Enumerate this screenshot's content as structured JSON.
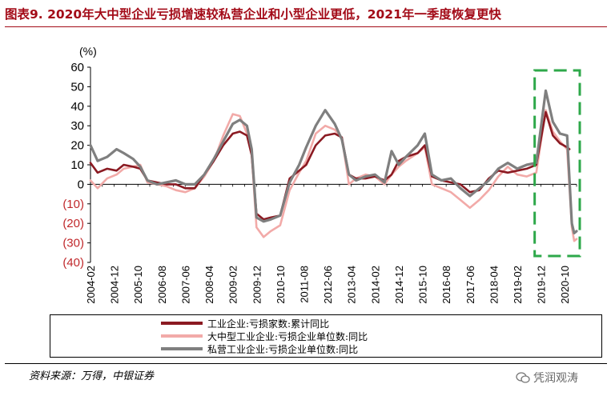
{
  "title": "图表9. 2020年大中型企业亏损增速较私营企业和小型企业更低，2021年一季度恢复更快",
  "unit": "(%)",
  "source": "资料来源：万得，中银证券",
  "watermark": "凭润观涛",
  "colors": {
    "title": "#a30b18",
    "series1": "#8b1a22",
    "series2": "#f2aaa8",
    "series3": "#7f7f7f",
    "highlight": "#2ea84a"
  },
  "chart_data": {
    "type": "line",
    "ylim": [
      -40,
      60
    ],
    "yticks": [
      {
        "v": 60,
        "label": "60"
      },
      {
        "v": 50,
        "label": "50"
      },
      {
        "v": 40,
        "label": "40"
      },
      {
        "v": 30,
        "label": "30"
      },
      {
        "v": 20,
        "label": "20"
      },
      {
        "v": 10,
        "label": "10"
      },
      {
        "v": 0,
        "label": "0"
      },
      {
        "v": -10,
        "label": "(10)"
      },
      {
        "v": -20,
        "label": "(20)"
      },
      {
        "v": -30,
        "label": "(30)"
      },
      {
        "v": -40,
        "label": "(40)"
      }
    ],
    "xlabels": [
      "2004-02",
      "2004-12",
      "2005-10",
      "2006-08",
      "2007-06",
      "2008-04",
      "2009-02",
      "2009-12",
      "2010-10",
      "2011-08",
      "2012-06",
      "2013-04",
      "2014-02",
      "2014-12",
      "2015-10",
      "2016-08",
      "2017-06",
      "2018-04",
      "2019-02",
      "2019-12",
      "2020-10"
    ],
    "x_start": "2004-02",
    "x_end": "2021-03",
    "highlight": {
      "x_from": "2019-10",
      "x_to": "2021-03"
    },
    "series": [
      {
        "name": "工业企业:亏损家数:累计同比",
        "color_key": "series1",
        "width": 2.6,
        "points": [
          [
            "2004-02",
            11
          ],
          [
            "2004-05",
            6
          ],
          [
            "2004-09",
            8
          ],
          [
            "2005-01",
            7
          ],
          [
            "2005-04",
            10
          ],
          [
            "2005-08",
            9
          ],
          [
            "2005-11",
            8
          ],
          [
            "2006-02",
            2
          ],
          [
            "2006-06",
            1
          ],
          [
            "2006-10",
            0
          ],
          [
            "2007-02",
            0
          ],
          [
            "2007-06",
            -2
          ],
          [
            "2007-10",
            -2
          ],
          [
            "2008-02",
            5
          ],
          [
            "2008-06",
            12
          ],
          [
            "2008-10",
            20
          ],
          [
            "2009-02",
            26
          ],
          [
            "2009-05",
            27
          ],
          [
            "2009-08",
            25
          ],
          [
            "2009-10",
            15
          ],
          [
            "2009-12",
            -15
          ],
          [
            "2010-03",
            -18
          ],
          [
            "2010-06",
            -17
          ],
          [
            "2010-10",
            -16
          ],
          [
            "2011-02",
            3
          ],
          [
            "2011-06",
            7
          ],
          [
            "2011-09",
            10
          ],
          [
            "2012-01",
            20
          ],
          [
            "2012-05",
            25
          ],
          [
            "2012-09",
            26
          ],
          [
            "2012-12",
            24
          ],
          [
            "2013-03",
            5
          ],
          [
            "2013-06",
            3
          ],
          [
            "2013-10",
            3
          ],
          [
            "2014-02",
            4
          ],
          [
            "2014-06",
            2
          ],
          [
            "2014-09",
            5
          ],
          [
            "2014-12",
            12
          ],
          [
            "2015-03",
            14
          ],
          [
            "2015-08",
            16
          ],
          [
            "2015-11",
            20
          ],
          [
            "2016-02",
            4
          ],
          [
            "2016-06",
            2
          ],
          [
            "2016-10",
            1
          ],
          [
            "2017-02",
            0
          ],
          [
            "2017-06",
            -4
          ],
          [
            "2017-10",
            -3
          ],
          [
            "2018-02",
            3
          ],
          [
            "2018-06",
            7
          ],
          [
            "2018-10",
            6
          ],
          [
            "2019-02",
            7
          ],
          [
            "2019-06",
            8
          ],
          [
            "2019-10",
            10
          ],
          [
            "2020-02",
            37
          ],
          [
            "2020-05",
            25
          ],
          [
            "2020-08",
            21
          ],
          [
            "2020-11",
            19
          ],
          [
            "2020-12",
            18
          ]
        ]
      },
      {
        "name": "大中型工业企业:亏损企业单位数:同比",
        "color_key": "series2",
        "width": 2.6,
        "points": [
          [
            "2004-02",
            2
          ],
          [
            "2004-05",
            -2
          ],
          [
            "2004-09",
            3
          ],
          [
            "2005-01",
            5
          ],
          [
            "2005-04",
            8
          ],
          [
            "2005-08",
            9
          ],
          [
            "2005-11",
            10
          ],
          [
            "2006-02",
            1
          ],
          [
            "2006-06",
            0
          ],
          [
            "2006-10",
            -1
          ],
          [
            "2007-02",
            -3
          ],
          [
            "2007-06",
            -4
          ],
          [
            "2007-10",
            -2
          ],
          [
            "2008-02",
            4
          ],
          [
            "2008-06",
            12
          ],
          [
            "2008-10",
            25
          ],
          [
            "2009-02",
            36
          ],
          [
            "2009-05",
            35
          ],
          [
            "2009-08",
            26
          ],
          [
            "2009-10",
            15
          ],
          [
            "2009-12",
            -22
          ],
          [
            "2010-03",
            -27
          ],
          [
            "2010-06",
            -24
          ],
          [
            "2010-10",
            -21
          ],
          [
            "2011-02",
            -3
          ],
          [
            "2011-06",
            6
          ],
          [
            "2011-09",
            12
          ],
          [
            "2012-01",
            26
          ],
          [
            "2012-05",
            30
          ],
          [
            "2012-09",
            28
          ],
          [
            "2012-12",
            24
          ],
          [
            "2013-03",
            0
          ],
          [
            "2013-06",
            3
          ],
          [
            "2013-10",
            5
          ],
          [
            "2014-02",
            4
          ],
          [
            "2014-06",
            0
          ],
          [
            "2014-09",
            5
          ],
          [
            "2014-12",
            9
          ],
          [
            "2015-03",
            12
          ],
          [
            "2015-08",
            16
          ],
          [
            "2015-11",
            19
          ],
          [
            "2016-02",
            0
          ],
          [
            "2016-06",
            -2
          ],
          [
            "2016-10",
            -4
          ],
          [
            "2017-02",
            -8
          ],
          [
            "2017-06",
            -12
          ],
          [
            "2017-10",
            -8
          ],
          [
            "2018-02",
            -3
          ],
          [
            "2018-06",
            4
          ],
          [
            "2018-10",
            9
          ],
          [
            "2019-02",
            5
          ],
          [
            "2019-06",
            4
          ],
          [
            "2019-10",
            6
          ],
          [
            "2020-02",
            38
          ],
          [
            "2020-05",
            27
          ],
          [
            "2020-08",
            22
          ],
          [
            "2020-11",
            18
          ],
          [
            "2021-01",
            -22
          ],
          [
            "2021-02",
            -29
          ],
          [
            "2021-03",
            -28
          ]
        ]
      },
      {
        "name": "私营工业企业:亏损企业单位数:同比",
        "color_key": "series3",
        "width": 3.2,
        "points": [
          [
            "2004-02",
            20
          ],
          [
            "2004-05",
            12
          ],
          [
            "2004-09",
            14
          ],
          [
            "2005-01",
            18
          ],
          [
            "2005-04",
            16
          ],
          [
            "2005-08",
            13
          ],
          [
            "2005-11",
            9
          ],
          [
            "2006-02",
            2
          ],
          [
            "2006-06",
            0
          ],
          [
            "2006-10",
            1
          ],
          [
            "2007-02",
            2
          ],
          [
            "2007-06",
            0
          ],
          [
            "2007-10",
            0
          ],
          [
            "2008-02",
            5
          ],
          [
            "2008-06",
            13
          ],
          [
            "2008-10",
            22
          ],
          [
            "2009-02",
            31
          ],
          [
            "2009-05",
            33
          ],
          [
            "2009-08",
            30
          ],
          [
            "2009-10",
            18
          ],
          [
            "2009-12",
            -17
          ],
          [
            "2010-03",
            -19
          ],
          [
            "2010-06",
            -18
          ],
          [
            "2010-10",
            -16
          ],
          [
            "2011-02",
            1
          ],
          [
            "2011-06",
            10
          ],
          [
            "2011-09",
            19
          ],
          [
            "2012-01",
            30
          ],
          [
            "2012-05",
            38
          ],
          [
            "2012-09",
            31
          ],
          [
            "2012-12",
            23
          ],
          [
            "2013-03",
            5
          ],
          [
            "2013-06",
            2
          ],
          [
            "2013-10",
            4
          ],
          [
            "2014-02",
            5
          ],
          [
            "2014-06",
            1
          ],
          [
            "2014-09",
            17
          ],
          [
            "2014-12",
            10
          ],
          [
            "2015-03",
            14
          ],
          [
            "2015-08",
            20
          ],
          [
            "2015-11",
            26
          ],
          [
            "2016-02",
            5
          ],
          [
            "2016-06",
            2
          ],
          [
            "2016-10",
            3
          ],
          [
            "2017-02",
            -2
          ],
          [
            "2017-06",
            -6
          ],
          [
            "2017-10",
            -2
          ],
          [
            "2018-02",
            2
          ],
          [
            "2018-06",
            8
          ],
          [
            "2018-10",
            11
          ],
          [
            "2019-02",
            8
          ],
          [
            "2019-06",
            10
          ],
          [
            "2019-10",
            11
          ],
          [
            "2020-02",
            48
          ],
          [
            "2020-05",
            32
          ],
          [
            "2020-08",
            26
          ],
          [
            "2020-11",
            25
          ],
          [
            "2021-01",
            -20
          ],
          [
            "2021-02",
            -25
          ],
          [
            "2021-03",
            -24
          ]
        ]
      }
    ]
  }
}
